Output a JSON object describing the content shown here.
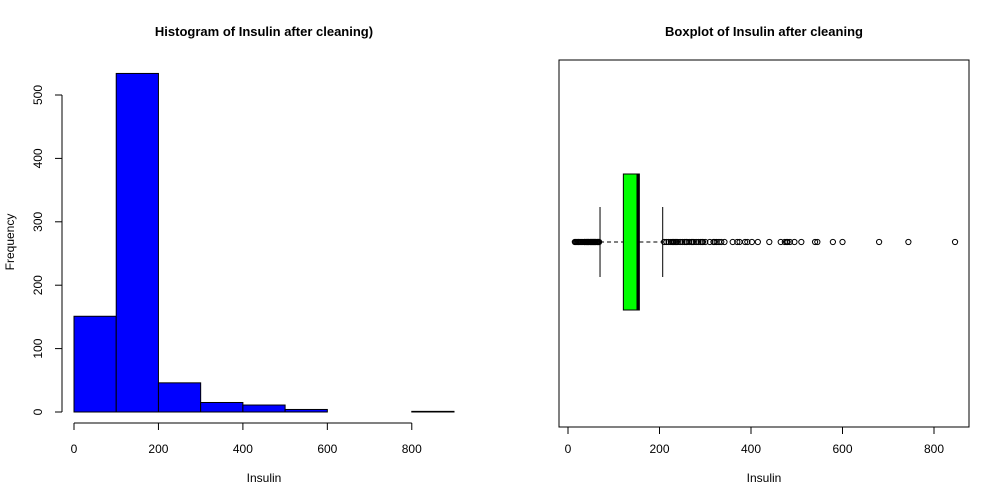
{
  "colors": {
    "hist_fill": "#0000ff",
    "box_fill": "#00ff00",
    "stroke": "#000000",
    "background": "#ffffff"
  },
  "chart_data": [
    {
      "type": "bar",
      "title": "Histogram of Insulin after cleaning)",
      "xlabel": "Insulin",
      "ylabel": "Frequency",
      "bin_edges": [
        0,
        100,
        200,
        300,
        400,
        500,
        600,
        700,
        800,
        900
      ],
      "values": [
        151,
        534,
        46,
        15,
        11,
        4,
        0,
        0,
        1
      ],
      "xlim": [
        0,
        900
      ],
      "ylim": [
        0,
        550
      ],
      "x_ticks": [
        0,
        200,
        400,
        600,
        800
      ],
      "x_tick_labels": [
        "0",
        "200",
        "400",
        "600",
        "800"
      ],
      "y_ticks": [
        0,
        100,
        200,
        300,
        400,
        500
      ],
      "y_tick_labels": [
        "0",
        "100",
        "200",
        "300",
        "400",
        "500"
      ]
    },
    {
      "type": "boxplot",
      "title": "Boxplot of Insulin after cleaning",
      "xlabel": "Insulin",
      "ylabel": "",
      "xlim": [
        0,
        870
      ],
      "x_ticks": [
        0,
        200,
        400,
        600,
        800
      ],
      "x_tick_labels": [
        "0",
        "200",
        "400",
        "600",
        "800"
      ],
      "whisker_low": 70,
      "q1": 121,
      "median": 153,
      "q3": 156,
      "whisker_high": 207,
      "outliers": [
        15,
        16,
        18,
        20,
        22,
        23,
        25,
        28,
        29,
        32,
        35,
        36,
        37,
        38,
        40,
        41,
        42,
        43,
        44,
        45,
        46,
        48,
        49,
        50,
        51,
        52,
        53,
        54,
        55,
        56,
        57,
        58,
        59,
        60,
        61,
        63,
        64,
        65,
        66,
        67,
        68,
        210,
        215,
        220,
        225,
        228,
        230,
        232,
        235,
        237,
        240,
        245,
        250,
        255,
        258,
        260,
        265,
        270,
        272,
        275,
        280,
        285,
        290,
        293,
        295,
        300,
        310,
        318,
        321,
        325,
        330,
        335,
        342,
        360,
        370,
        375,
        387,
        392,
        402,
        415,
        440,
        465,
        474,
        478,
        480,
        485,
        495,
        510,
        540,
        545,
        579,
        600,
        680,
        744,
        846
      ]
    }
  ]
}
